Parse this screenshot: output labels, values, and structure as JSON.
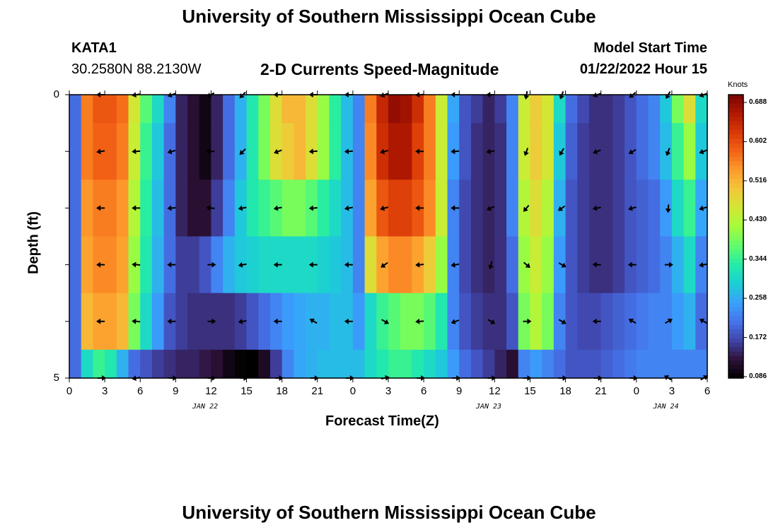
{
  "page": {
    "title": "University of Southern Mississippi Ocean Cube",
    "station": "KATA1",
    "coords": "30.2580N  88.2130W",
    "plot_title": "2-D Currents Speed-Magnitude",
    "model_start_label": "Model Start Time",
    "model_start_value": "01/22/2022 Hour 15",
    "footer_title": "University of Southern Mississippi Ocean Cube"
  },
  "colors": {
    "scale": [
      "#000000",
      "#30123b",
      "#4145ab",
      "#4675ed",
      "#39a2fc",
      "#1bcfd4",
      "#24eca6",
      "#61fc6c",
      "#a4fc3b",
      "#d1e834",
      "#f3c63a",
      "#fe9b2d",
      "#f36315",
      "#d93806",
      "#b11901",
      "#7a0402"
    ]
  },
  "chart_data": {
    "type": "heatmap",
    "title": "2-D Currents Speed-Magnitude",
    "xlabel": "Forecast Time(Z)",
    "ylabel": "Depth (ft)",
    "x_tick_labels": [
      "0",
      "3",
      "6",
      "9",
      "12",
      "15",
      "18",
      "21",
      "0",
      "3",
      "6",
      "9",
      "12",
      "15",
      "18",
      "21",
      "0",
      "3",
      "6"
    ],
    "y_tick_labels": [
      "0",
      "5"
    ],
    "ylim": [
      0,
      5
    ],
    "date_labels": [
      {
        "label": "JAN 22",
        "x_hour": 11.5
      },
      {
        "label": "JAN 23",
        "x_hour": 35.5
      },
      {
        "label": "JAN 24",
        "x_hour": 50.5
      }
    ],
    "colorbar": {
      "label": "Knots",
      "ticks": [
        "0.688",
        "0.602",
        "0.516",
        "0.430",
        "0.344",
        "0.258",
        "0.172",
        "0.086"
      ],
      "min": 0.086,
      "max": 0.688
    },
    "depth_levels": [
      0,
      1,
      2,
      3,
      4,
      5
    ],
    "speed_knots": [
      [
        0.2,
        0.55,
        0.58,
        0.58,
        0.56,
        0.45,
        0.36,
        0.3,
        0.22,
        0.14,
        0.12,
        0.1,
        0.14,
        0.2,
        0.26,
        0.32,
        0.38,
        0.46,
        0.5,
        0.5,
        0.46,
        0.4,
        0.33,
        0.27,
        0.22,
        0.55,
        0.63,
        0.67,
        0.66,
        0.62,
        0.55,
        0.44,
        0.25,
        0.18,
        0.16,
        0.14,
        0.16,
        0.22,
        0.44,
        0.48,
        0.45,
        0.3,
        0.2,
        0.17,
        0.15,
        0.15,
        0.16,
        0.18,
        0.2,
        0.22,
        0.28,
        0.38,
        0.46,
        0.3
      ],
      [
        0.2,
        0.55,
        0.57,
        0.57,
        0.55,
        0.44,
        0.34,
        0.28,
        0.2,
        0.14,
        0.12,
        0.1,
        0.14,
        0.2,
        0.26,
        0.32,
        0.38,
        0.46,
        0.48,
        0.5,
        0.46,
        0.4,
        0.33,
        0.27,
        0.22,
        0.54,
        0.62,
        0.65,
        0.65,
        0.6,
        0.55,
        0.44,
        0.24,
        0.18,
        0.15,
        0.14,
        0.15,
        0.22,
        0.44,
        0.48,
        0.45,
        0.28,
        0.19,
        0.16,
        0.15,
        0.15,
        0.16,
        0.18,
        0.2,
        0.22,
        0.27,
        0.34,
        0.4,
        0.28
      ],
      [
        0.2,
        0.53,
        0.55,
        0.55,
        0.53,
        0.42,
        0.33,
        0.27,
        0.2,
        0.14,
        0.12,
        0.12,
        0.16,
        0.22,
        0.28,
        0.32,
        0.34,
        0.36,
        0.38,
        0.38,
        0.36,
        0.33,
        0.3,
        0.27,
        0.22,
        0.52,
        0.58,
        0.6,
        0.6,
        0.58,
        0.54,
        0.44,
        0.22,
        0.17,
        0.15,
        0.14,
        0.15,
        0.22,
        0.42,
        0.46,
        0.42,
        0.26,
        0.18,
        0.16,
        0.15,
        0.15,
        0.16,
        0.18,
        0.19,
        0.2,
        0.24,
        0.3,
        0.34,
        0.25
      ],
      [
        0.2,
        0.52,
        0.54,
        0.54,
        0.52,
        0.4,
        0.32,
        0.26,
        0.2,
        0.16,
        0.16,
        0.18,
        0.22,
        0.26,
        0.28,
        0.29,
        0.3,
        0.3,
        0.3,
        0.3,
        0.3,
        0.29,
        0.28,
        0.27,
        0.22,
        0.46,
        0.52,
        0.54,
        0.54,
        0.52,
        0.48,
        0.4,
        0.22,
        0.17,
        0.15,
        0.14,
        0.15,
        0.2,
        0.4,
        0.44,
        0.4,
        0.24,
        0.18,
        0.16,
        0.15,
        0.15,
        0.16,
        0.18,
        0.19,
        0.2,
        0.22,
        0.26,
        0.3,
        0.22
      ],
      [
        0.2,
        0.5,
        0.52,
        0.52,
        0.5,
        0.38,
        0.3,
        0.24,
        0.18,
        0.16,
        0.15,
        0.15,
        0.15,
        0.15,
        0.16,
        0.18,
        0.2,
        0.22,
        0.24,
        0.25,
        0.26,
        0.26,
        0.27,
        0.27,
        0.24,
        0.3,
        0.34,
        0.36,
        0.38,
        0.38,
        0.36,
        0.32,
        0.22,
        0.18,
        0.16,
        0.15,
        0.15,
        0.18,
        0.38,
        0.42,
        0.38,
        0.22,
        0.18,
        0.17,
        0.17,
        0.18,
        0.19,
        0.2,
        0.21,
        0.22,
        0.22,
        0.24,
        0.26,
        0.2
      ],
      [
        0.2,
        0.3,
        0.34,
        0.32,
        0.26,
        0.2,
        0.18,
        0.16,
        0.15,
        0.14,
        0.14,
        0.13,
        0.12,
        0.1,
        0.09,
        0.086,
        0.11,
        0.16,
        0.22,
        0.25,
        0.26,
        0.27,
        0.27,
        0.27,
        0.27,
        0.3,
        0.32,
        0.34,
        0.34,
        0.32,
        0.3,
        0.28,
        0.24,
        0.2,
        0.18,
        0.16,
        0.14,
        0.12,
        0.22,
        0.24,
        0.22,
        0.2,
        0.18,
        0.18,
        0.18,
        0.19,
        0.2,
        0.21,
        0.22,
        0.22,
        0.22,
        0.22,
        0.22,
        0.22
      ]
    ],
    "arrows": {
      "x_hours": [
        2.7,
        5.7,
        8.7,
        12.0,
        14.7,
        17.7,
        20.7,
        23.7,
        26.7,
        29.7,
        32.7,
        35.7,
        38.7,
        41.7,
        44.7,
        47.7,
        50.7,
        53.7
      ],
      "depths": [
        0,
        1,
        2,
        3,
        4,
        5
      ],
      "direction_deg": [
        [
          180,
          190,
          200,
          210,
          225,
          180,
          180,
          180,
          200,
          185,
          180,
          180,
          260,
          250,
          200,
          220,
          240,
          200
        ],
        [
          190,
          185,
          195,
          180,
          225,
          200,
          185,
          185,
          195,
          180,
          185,
          190,
          250,
          240,
          200,
          210,
          250,
          200
        ],
        [
          180,
          180,
          185,
          175,
          190,
          190,
          185,
          190,
          195,
          180,
          180,
          205,
          230,
          215,
          190,
          195,
          265,
          195
        ],
        [
          180,
          175,
          180,
          0,
          190,
          180,
          180,
          180,
          215,
          185,
          190,
          255,
          320,
          330,
          175,
          180,
          0,
          190
        ],
        [
          180,
          175,
          180,
          0,
          190,
          180,
          150,
          180,
          330,
          185,
          200,
          330,
          0,
          330,
          180,
          150,
          30,
          150
        ],
        [
          0,
          190,
          0,
          0,
          0,
          0,
          0,
          0,
          10,
          0,
          0,
          0,
          0,
          0,
          0,
          0,
          150,
          30
        ]
      ]
    }
  }
}
